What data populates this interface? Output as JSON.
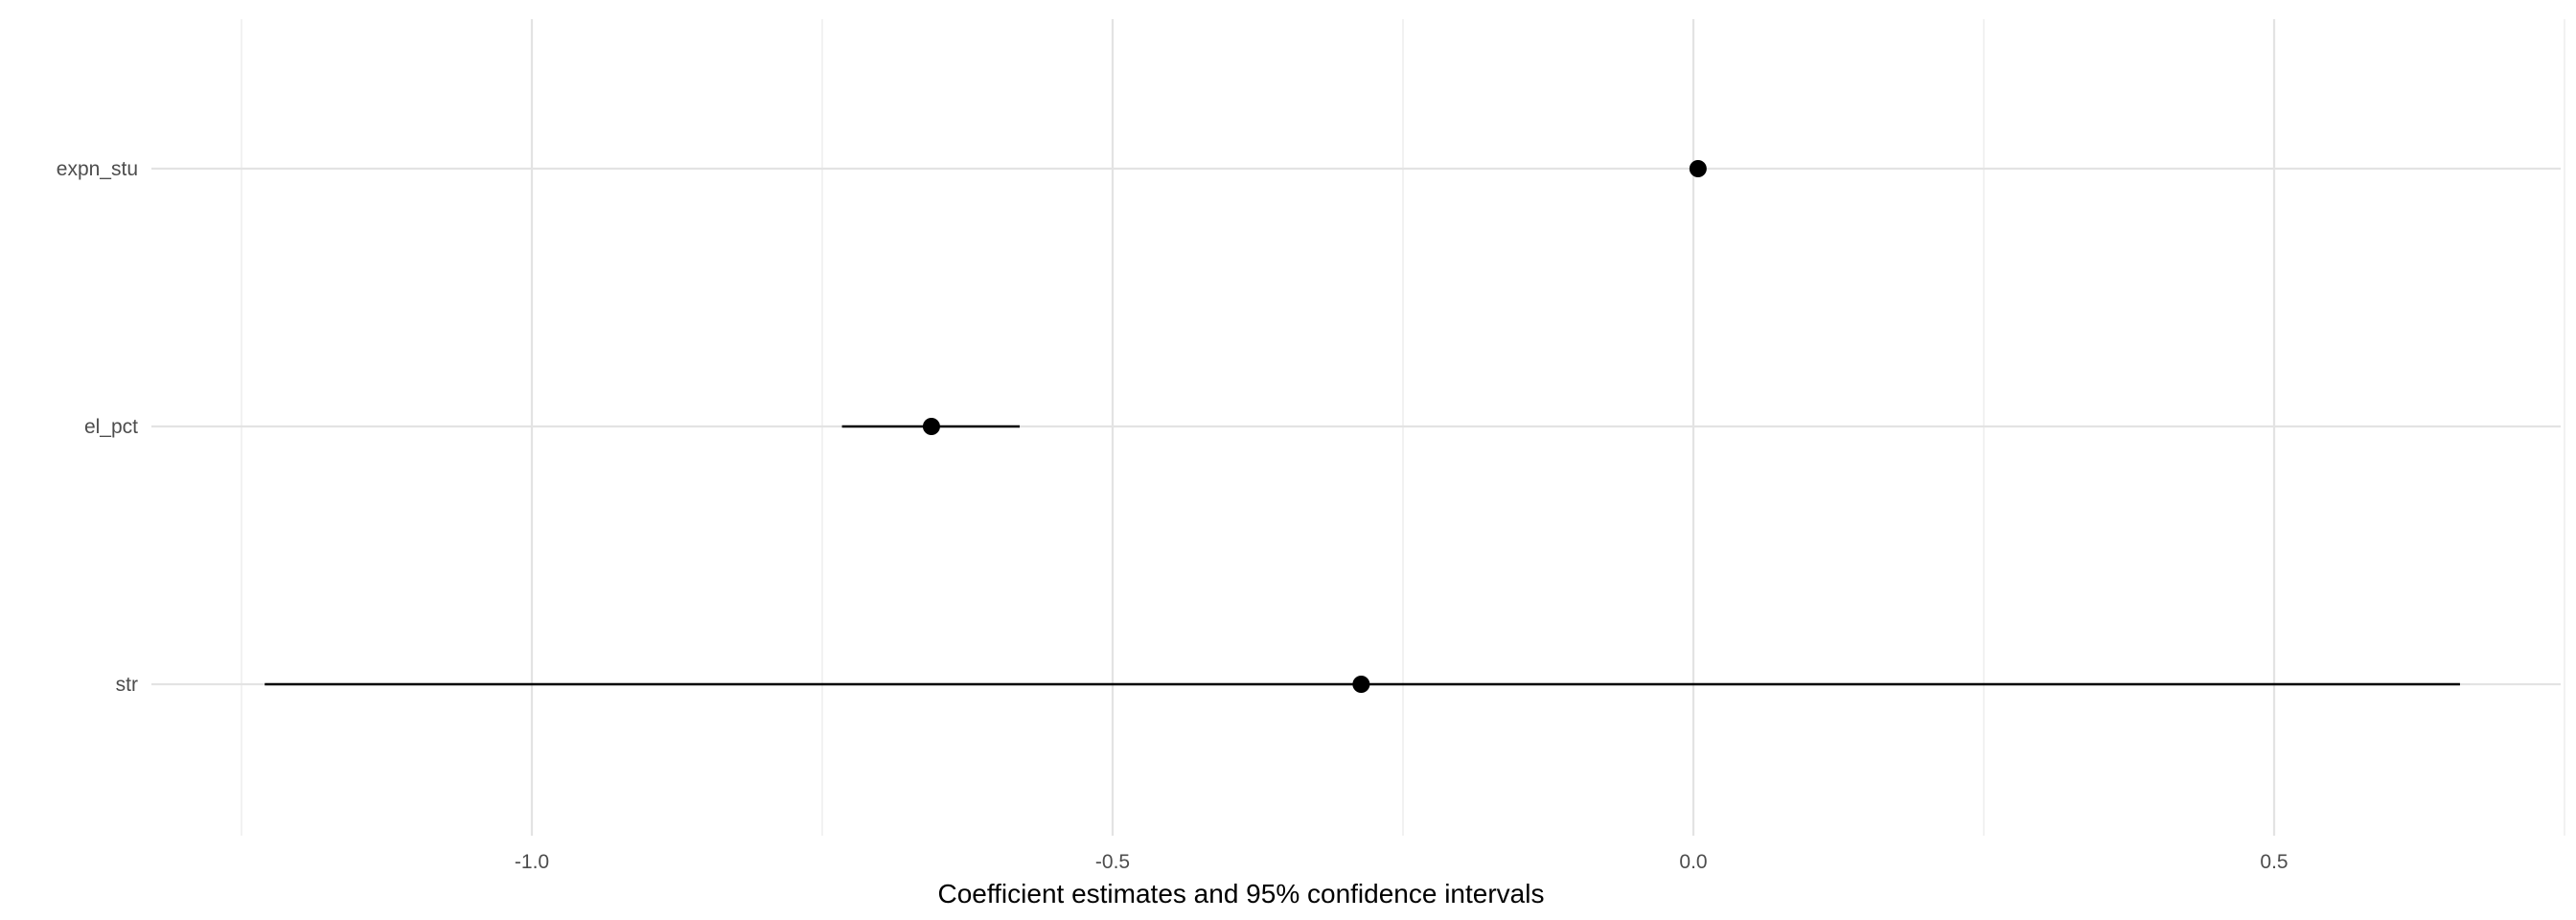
{
  "chart_data": {
    "type": "scatter",
    "subtype": "coefficient-plot",
    "title": "",
    "xlabel": "Coefficient estimates and 95% confidence intervals",
    "ylabel": "",
    "xlim": [
      -1.25,
      0.75
    ],
    "x_ticks": [
      -1.0,
      -0.5,
      0.0,
      0.5
    ],
    "x_tick_labels": [
      "-1.0",
      "-0.5",
      "0.0",
      "0.5"
    ],
    "x_minor_ticks": [
      -1.25,
      -0.75,
      -0.25,
      0.25,
      0.75
    ],
    "categories": [
      "expn_stu",
      "el_pct",
      "str"
    ],
    "series": [
      {
        "estimates": [
          {
            "term": "expn_stu",
            "estimate": 0.004,
            "conf_low": 0.003,
            "conf_high": 0.005
          },
          {
            "term": "el_pct",
            "estimate": -0.656,
            "conf_low": -0.733,
            "conf_high": -0.58
          },
          {
            "term": "str",
            "estimate": -0.286,
            "conf_low": -1.23,
            "conf_high": 0.66
          }
        ]
      }
    ],
    "grid": true,
    "legend": "none",
    "colors": {
      "marks": "#000000",
      "grid": "#e3e3e3",
      "tick_text": "#4d4d4d"
    }
  }
}
